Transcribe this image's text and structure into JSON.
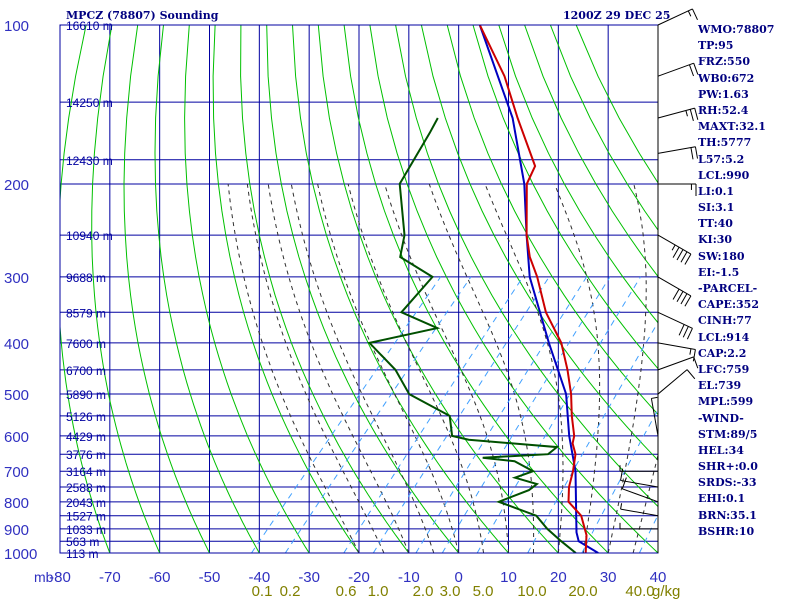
{
  "header": {
    "station": "MPCZ (78807) Sounding",
    "time": "1200Z 29 DEC 25"
  },
  "stats": [
    "WMO:78807",
    "TP:95",
    "FRZ:550",
    "WB0:672",
    "PW:1.63",
    "RH:52.4",
    "MAXT:32.1",
    "TH:5777",
    "L57:5.2",
    "LCL:990",
    "LI:0.1",
    "SI:3.1",
    "TT:40",
    "KI:30",
    "SW:180",
    "EI:-1.5",
    "-PARCEL-",
    "CAPE:352",
    "CINH:77",
    "LCL:914",
    "CAP:2.2",
    "LFC:759",
    "EL:739",
    "MPL:599",
    "-WIND-",
    "STM:89/5",
    "HEL:34",
    "SHR+:0.0",
    "SRDS:-33",
    "EHI:0.1",
    "BRN:35.1",
    "BSHR:10"
  ],
  "colors": {
    "grid": "#0000a0",
    "dry_adiabat": "#00c000",
    "moist_adiabat": "#303030",
    "mixing_ratio": "#40a0ff",
    "temperature": "#cc0000",
    "dewpoint": "#005000",
    "parcel": "#0000c0",
    "axis_text": "#3030c0",
    "mixing_label": "#808000"
  },
  "chart_data": {
    "type": "skew-t",
    "p_ticks": [
      100,
      200,
      300,
      400,
      500,
      600,
      700,
      800,
      900,
      1000
    ],
    "p_axis_unit": "mb",
    "t_ticks": [
      -80,
      -70,
      -60,
      -50,
      -40,
      -30,
      -20,
      -10,
      0,
      10,
      20,
      30,
      40
    ],
    "t_range": [
      -80,
      40
    ],
    "p_range": [
      100,
      1000
    ],
    "height_labels": [
      {
        "p": 100,
        "label": "16610 m"
      },
      {
        "p": 140,
        "label": "14250 m"
      },
      {
        "p": 180,
        "label": "12430 m"
      },
      {
        "p": 250,
        "label": "10940 m"
      },
      {
        "p": 300,
        "label": "9688 m"
      },
      {
        "p": 350,
        "label": "8579 m"
      },
      {
        "p": 400,
        "label": "7600 m"
      },
      {
        "p": 450,
        "label": "6700 m"
      },
      {
        "p": 500,
        "label": "5890 m"
      },
      {
        "p": 550,
        "label": "5126 m"
      },
      {
        "p": 600,
        "label": "4429 m"
      },
      {
        "p": 650,
        "label": "3776 m"
      },
      {
        "p": 700,
        "label": "3164 m"
      },
      {
        "p": 750,
        "label": "2588 m"
      },
      {
        "p": 800,
        "label": "2043 m"
      },
      {
        "p": 850,
        "label": "1527 m"
      },
      {
        "p": 900,
        "label": "1033 m"
      },
      {
        "p": 950,
        "label": "563 m"
      },
      {
        "p": 1000,
        "label": "113 m"
      }
    ],
    "mixing_ratio_labels": [
      "0.1",
      "0.2",
      "0.6",
      "1.0",
      "2.0",
      "3.0",
      "5.0",
      "10.0",
      "20.0",
      "40.0"
    ],
    "mixing_ratio_unit": "g/kg",
    "temperature": [
      {
        "p": 1000,
        "t": 25.5
      },
      {
        "p": 925,
        "t": 22.5
      },
      {
        "p": 850,
        "t": 18
      },
      {
        "p": 800,
        "t": 13
      },
      {
        "p": 750,
        "t": 10.5
      },
      {
        "p": 700,
        "t": 8.5
      },
      {
        "p": 650,
        "t": 6
      },
      {
        "p": 620,
        "t": 3.5
      },
      {
        "p": 600,
        "t": 2.5
      },
      {
        "p": 550,
        "t": -1.5
      },
      {
        "p": 500,
        "t": -5.5
      },
      {
        "p": 450,
        "t": -10.5
      },
      {
        "p": 400,
        "t": -16.5
      },
      {
        "p": 350,
        "t": -25
      },
      {
        "p": 300,
        "t": -33
      },
      {
        "p": 275,
        "t": -38
      },
      {
        "p": 250,
        "t": -42.5
      },
      {
        "p": 200,
        "t": -51.5
      },
      {
        "p": 185,
        "t": -53
      },
      {
        "p": 150,
        "t": -65
      },
      {
        "p": 125,
        "t": -75
      },
      {
        "p": 100,
        "t": -89
      }
    ],
    "dewpoint": [
      {
        "p": 1000,
        "t": 23.5
      },
      {
        "p": 950,
        "t": 18.5
      },
      {
        "p": 900,
        "t": 13.5
      },
      {
        "p": 850,
        "t": 9
      },
      {
        "p": 800,
        "t": -1
      },
      {
        "p": 760,
        "t": 3
      },
      {
        "p": 740,
        "t": 3.5
      },
      {
        "p": 720,
        "t": -2
      },
      {
        "p": 700,
        "t": 0.5
      },
      {
        "p": 670,
        "t": -5
      },
      {
        "p": 660,
        "t": -12
      },
      {
        "p": 650,
        "t": 0.5
      },
      {
        "p": 630,
        "t": 1
      },
      {
        "p": 610,
        "t": -18
      },
      {
        "p": 600,
        "t": -22
      },
      {
        "p": 550,
        "t": -26
      },
      {
        "p": 500,
        "t": -38
      },
      {
        "p": 450,
        "t": -45
      },
      {
        "p": 400,
        "t": -55
      },
      {
        "p": 375,
        "t": -44
      },
      {
        "p": 350,
        "t": -54
      },
      {
        "p": 300,
        "t": -54
      },
      {
        "p": 275,
        "t": -64
      },
      {
        "p": 250,
        "t": -67
      },
      {
        "p": 200,
        "t": -77
      },
      {
        "p": 160,
        "t": -80
      },
      {
        "p": 150,
        "t": -81
      }
    ],
    "parcel": [
      {
        "p": 1000,
        "t": 28
      },
      {
        "p": 950,
        "t": 22
      },
      {
        "p": 914,
        "t": 20
      },
      {
        "p": 850,
        "t": 17
      },
      {
        "p": 800,
        "t": 14.5
      },
      {
        "p": 700,
        "t": 9
      },
      {
        "p": 600,
        "t": 1.5
      },
      {
        "p": 500,
        "t": -6.5
      },
      {
        "p": 400,
        "t": -19
      },
      {
        "p": 300,
        "t": -34.5
      },
      {
        "p": 250,
        "t": -42.5
      },
      {
        "p": 200,
        "t": -52
      },
      {
        "p": 150,
        "t": -66
      },
      {
        "p": 100,
        "t": -89
      }
    ],
    "wind_profile": [
      {
        "p": 100,
        "dir": 245,
        "spd": 15
      },
      {
        "p": 125,
        "dir": 250,
        "spd": 20
      },
      {
        "p": 150,
        "dir": 255,
        "spd": 25
      },
      {
        "p": 175,
        "dir": 260,
        "spd": 20
      },
      {
        "p": 200,
        "dir": 270,
        "spd": 15
      },
      {
        "p": 250,
        "dir": 300,
        "spd": 45
      },
      {
        "p": 300,
        "dir": 300,
        "spd": 40
      },
      {
        "p": 350,
        "dir": 295,
        "spd": 30
      },
      {
        "p": 400,
        "dir": 280,
        "spd": 15
      },
      {
        "p": 450,
        "dir": 250,
        "spd": 10
      },
      {
        "p": 500,
        "dir": 230,
        "spd": 10
      },
      {
        "p": 600,
        "dir": 170,
        "spd": 5
      },
      {
        "p": 700,
        "dir": 90,
        "spd": 5
      },
      {
        "p": 750,
        "dir": 100,
        "spd": 10
      },
      {
        "p": 800,
        "dir": 110,
        "spd": 10
      },
      {
        "p": 850,
        "dir": 100,
        "spd": 5
      },
      {
        "p": 900,
        "dir": 90,
        "spd": 5
      }
    ]
  }
}
